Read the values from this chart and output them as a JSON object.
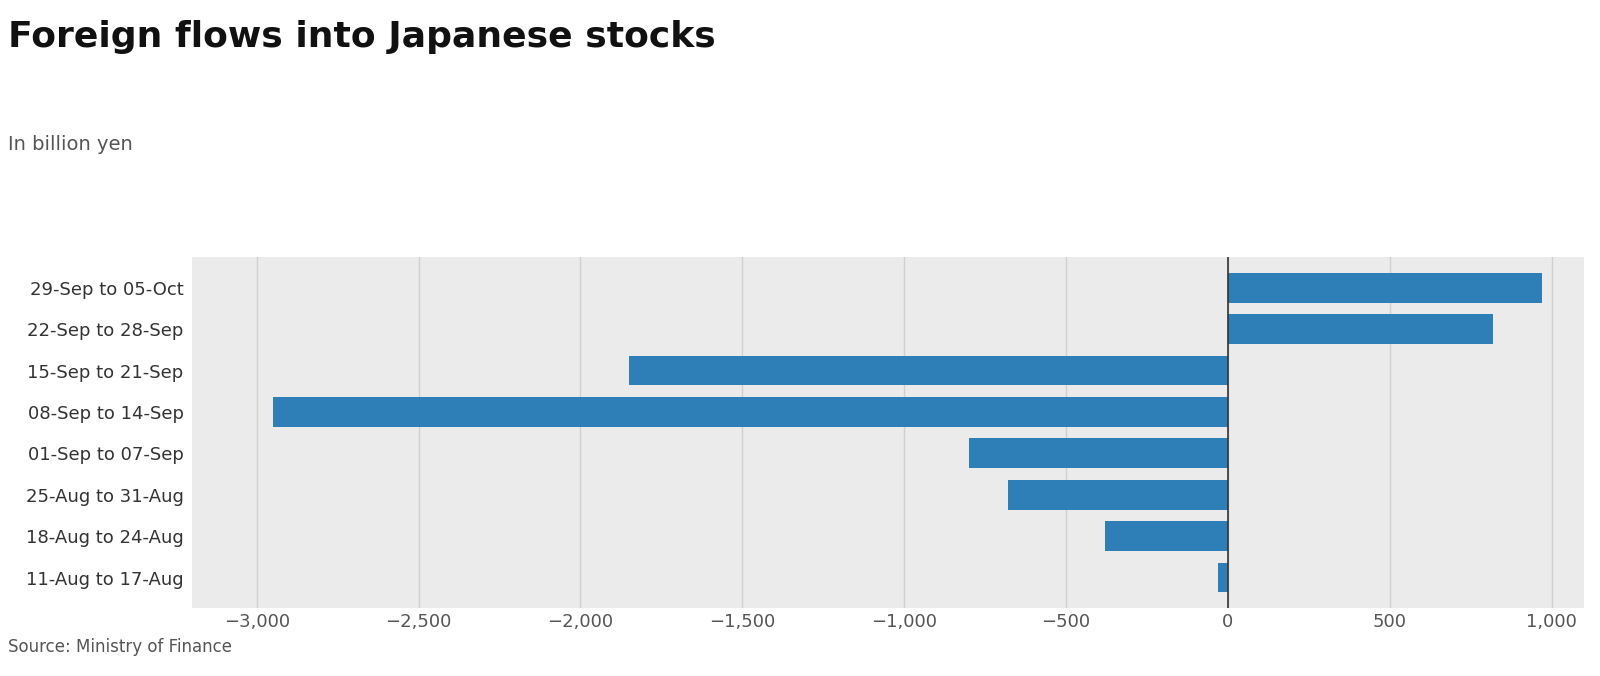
{
  "title": "Foreign flows into Japanese stocks",
  "subtitle": "In billion yen",
  "source": "Source: Ministry of Finance",
  "categories": [
    "11-Aug to 17-Aug",
    "18-Aug to 24-Aug",
    "25-Aug to 31-Aug",
    "01-Sep to 07-Sep",
    "08-Sep to 14-Sep",
    "15-Sep to 21-Sep",
    "22-Sep to 28-Sep",
    "29-Sep to 05-Oct"
  ],
  "values": [
    -30,
    -380,
    -680,
    -800,
    -2950,
    -1850,
    820,
    970
  ],
  "bar_color": "#2e7eb8",
  "plot_background": "#ebebeb",
  "fig_background": "#ffffff",
  "xlim": [
    -3200,
    1100
  ],
  "xticks": [
    -3000,
    -2500,
    -2000,
    -1500,
    -1000,
    -500,
    0,
    500,
    1000
  ],
  "title_fontsize": 26,
  "subtitle_fontsize": 14,
  "tick_fontsize": 13,
  "source_fontsize": 12,
  "grid_color": "#d0d0d0",
  "zero_line_color": "#333333"
}
